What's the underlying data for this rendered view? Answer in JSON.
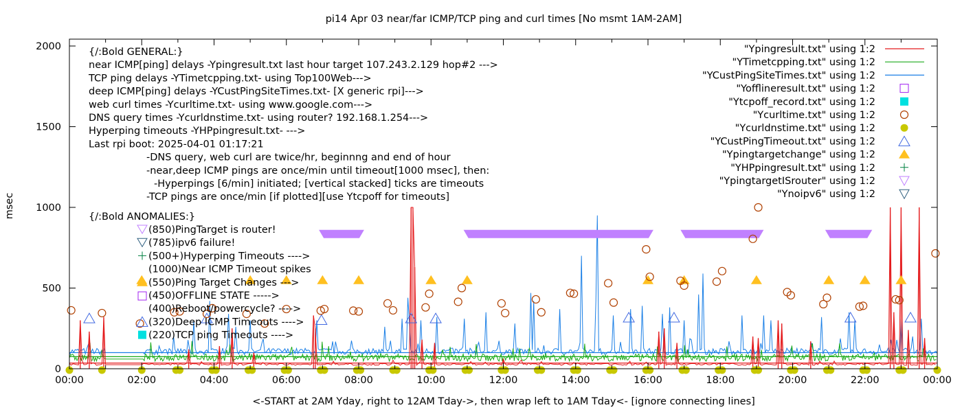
{
  "chart_data": {
    "type": "line",
    "title": "pi14 Apr 03  near/far ICMP/TCP ping and curl times [No msmt 1AM-2AM]",
    "xlabel": "<-START at 2AM Yday, right to 12AM Tday->, then wrap left to 1AM Tday<- [ignore connecting lines]",
    "ylabel": "msec",
    "xlim": [
      0,
      24
    ],
    "ylim": [
      0,
      2000
    ],
    "x_unit": "hours",
    "x_ticks": [
      {
        "value": 0,
        "label": "00:00"
      },
      {
        "value": 2,
        "label": "02:00"
      },
      {
        "value": 4,
        "label": "04:00"
      },
      {
        "value": 6,
        "label": "06:00"
      },
      {
        "value": 8,
        "label": "08:00"
      },
      {
        "value": 10,
        "label": "10:00"
      },
      {
        "value": 12,
        "label": "12:00"
      },
      {
        "value": 14,
        "label": "14:00"
      },
      {
        "value": 16,
        "label": "16:00"
      },
      {
        "value": 18,
        "label": "18:00"
      },
      {
        "value": 20,
        "label": "20:00"
      },
      {
        "value": 22,
        "label": "22:00"
      },
      {
        "value": 24,
        "label": "00:00"
      }
    ],
    "y_ticks": [
      {
        "value": 0,
        "label": "0"
      },
      {
        "value": 500,
        "label": "500"
      },
      {
        "value": 1000,
        "label": "1000"
      },
      {
        "value": 1500,
        "label": "1500"
      },
      {
        "value": 2000,
        "label": "2000"
      }
    ],
    "legend_position": "top-right",
    "annotations": {
      "general": [
        "{/:Bold GENERAL:}",
        "near ICMP[ping] delays -Ypingresult.txt last hour target 107.243.2.129 hop#2 --->",
        "TCP ping delays -YTimetcpping.txt- using Top100Web--->",
        "deep ICMP[ping] delays -YCustPingSiteTimes.txt- [X generic rpi]--->",
        "web curl times -Ycurltime.txt- using www.google.com--->",
        "DNS query times -Ycurldnstime.txt- using router? 192.168.1.254--->",
        "Hyperping timeouts -YHPpingresult.txt- --->",
        "Last rpi boot: 2025-04-01 01:17:21"
      ],
      "notes": [
        "-DNS query, web curl are twice/hr, beginnng and end of hour",
        "-near,deep ICMP pings are once/min until timeout[1000 msec], then:",
        "  -Hyperpings [6/min] initiated; [vertical stacked] ticks are timeouts",
        "-TCP pings are once/min [if plotted][use Ytcpoff for timeouts]"
      ],
      "anomalies_title": "{/:Bold ANOMALIES:}",
      "anomalies": [
        {
          "symbol": "tri-down-open-purple",
          "text": "(850)PingTarget is router!"
        },
        {
          "symbol": "tri-down-open-navy",
          "text": "(785)ipv6 failure!"
        },
        {
          "symbol": "plus-green",
          "text": "(500+)Hyperping Timeouts ---->"
        },
        {
          "symbol": "none",
          "text": "(1000)Near ICMP Timeout spikes"
        },
        {
          "symbol": "tri-up-filled-orange",
          "text": "(550)Ping Target Changes --->"
        },
        {
          "symbol": "square-open-purple",
          "text": "(450)OFFLINE STATE ----->"
        },
        {
          "symbol": "none",
          "text": "(400)Reboot/powercycle? ---->"
        },
        {
          "symbol": "tri-up-open-blue",
          "text": "(320)Deep ICMP Timeouts ---->"
        },
        {
          "symbol": "square-filled-cyan",
          "text": "(220)TCP ping Timeouts ---->"
        }
      ]
    },
    "legend": [
      {
        "label": "\"Ypingresult.txt\" using 1:2",
        "style": "line",
        "color": "#e41a1c"
      },
      {
        "label": "\"YTimetcpping.txt\" using 1:2",
        "style": "line",
        "color": "#1aaa1a"
      },
      {
        "label": "\"YCustPingSiteTimes.txt\" using 1:2",
        "style": "line",
        "color": "#1a7fe6"
      },
      {
        "label": "\"Yofflineresult.txt\" using 1:2",
        "style": "square-open",
        "color": "#a020f0"
      },
      {
        "label": "\"Ytcpoff_record.txt\" using 1:2",
        "style": "square-filled",
        "color": "#00e0e0"
      },
      {
        "label": "\"Ycurltime.txt\" using 1:2",
        "style": "circle-open",
        "color": "#b04000"
      },
      {
        "label": "\"Ycurldnstime.txt\" using 1:2",
        "style": "circle-filled",
        "color": "#c8c800"
      },
      {
        "label": "\"YCustPingTimeout.txt\" using 1:2",
        "style": "tri-up-open",
        "color": "#4169e1"
      },
      {
        "label": "\"Ypingtargetchange\" using 1:2",
        "style": "tri-up-filled",
        "color": "#ffc020"
      },
      {
        "label": "\"YHPpingresult.txt\" using 1:2",
        "style": "plus",
        "color": "#008040"
      },
      {
        "label": "\"YpingtargetISrouter\" using 1:2",
        "style": "tri-down-open",
        "color": "#c080ff"
      },
      {
        "label": "\"Ynoipv6\" using 1:2",
        "style": "tri-down-open",
        "color": "#306080"
      }
    ],
    "series": {
      "near_icmp": {
        "name": "Ypingresult.txt",
        "color": "#e41a1c",
        "baseline": 35,
        "spikes": [
          [
            0.3,
            300
          ],
          [
            0.55,
            230
          ],
          [
            0.95,
            320
          ],
          [
            3.3,
            120
          ],
          [
            4.15,
            140
          ],
          [
            4.5,
            250
          ],
          [
            5.1,
            100
          ],
          [
            6.75,
            330
          ],
          [
            6.8,
            250
          ],
          [
            9.45,
            1000
          ],
          [
            9.5,
            1000
          ],
          [
            9.55,
            630
          ],
          [
            9.75,
            180
          ],
          [
            10.1,
            160
          ],
          [
            12.0,
            60
          ],
          [
            16.3,
            230
          ],
          [
            16.45,
            250
          ],
          [
            16.8,
            160
          ],
          [
            18.9,
            200
          ],
          [
            19.05,
            190
          ],
          [
            19.6,
            300
          ],
          [
            19.7,
            280
          ],
          [
            20.5,
            170
          ],
          [
            22.7,
            1000
          ],
          [
            22.8,
            350
          ],
          [
            23.0,
            1000
          ],
          [
            23.2,
            240
          ],
          [
            23.5,
            1000
          ],
          [
            23.65,
            190
          ]
        ]
      },
      "tcp_ping": {
        "name": "YTimetcpping.txt",
        "color": "#1aaa1a",
        "baseline": 75,
        "noise": 45
      },
      "deep_icmp": {
        "name": "YCustPingSiteTimes.txt",
        "color": "#1a7fe6",
        "baseline": 100,
        "noise": 40,
        "spikes": [
          [
            0.5,
            150
          ],
          [
            3.45,
            300
          ],
          [
            3.9,
            420
          ],
          [
            4.4,
            340
          ],
          [
            4.6,
            260
          ],
          [
            5.0,
            300
          ],
          [
            6.85,
            300
          ],
          [
            8.7,
            260
          ],
          [
            9.2,
            310
          ],
          [
            9.35,
            440
          ],
          [
            9.4,
            290
          ],
          [
            9.7,
            300
          ],
          [
            10.15,
            320
          ],
          [
            10.9,
            310
          ],
          [
            11.5,
            350
          ],
          [
            12.3,
            280
          ],
          [
            12.75,
            470
          ],
          [
            12.85,
            420
          ],
          [
            13.55,
            370
          ],
          [
            14.15,
            700
          ],
          [
            14.55,
            420
          ],
          [
            14.6,
            950
          ],
          [
            15.05,
            330
          ],
          [
            15.5,
            370
          ],
          [
            15.85,
            390
          ],
          [
            16.4,
            340
          ],
          [
            16.6,
            380
          ],
          [
            17.0,
            300
          ],
          [
            17.4,
            460
          ],
          [
            17.5,
            590
          ],
          [
            18.6,
            330
          ],
          [
            19.2,
            330
          ],
          [
            19.4,
            300
          ],
          [
            20.8,
            320
          ],
          [
            21.55,
            350
          ],
          [
            21.7,
            300
          ],
          [
            22.4,
            150
          ],
          [
            22.7,
            180
          ],
          [
            23.0,
            310
          ],
          [
            23.3,
            200
          ],
          [
            23.55,
            310
          ]
        ]
      },
      "curl_time": {
        "name": "Ycurltime.txt",
        "color": "#b04000",
        "points": [
          [
            0.05,
            362
          ],
          [
            0.9,
            345
          ],
          [
            1.95,
            280
          ],
          [
            2.9,
            350
          ],
          [
            3.05,
            355
          ],
          [
            3.8,
            340
          ],
          [
            3.95,
            375
          ],
          [
            4.9,
            340
          ],
          [
            5.4,
            280
          ],
          [
            6.0,
            370
          ],
          [
            6.95,
            360
          ],
          [
            7.05,
            370
          ],
          [
            7.85,
            360
          ],
          [
            8.0,
            355
          ],
          [
            8.8,
            405
          ],
          [
            8.95,
            362
          ],
          [
            9.85,
            380
          ],
          [
            9.95,
            465
          ],
          [
            10.75,
            415
          ],
          [
            10.85,
            500
          ],
          [
            11.95,
            405
          ],
          [
            12.05,
            345
          ],
          [
            12.9,
            430
          ],
          [
            13.05,
            350
          ],
          [
            13.85,
            470
          ],
          [
            13.95,
            465
          ],
          [
            14.9,
            530
          ],
          [
            15.05,
            410
          ],
          [
            15.95,
            740
          ],
          [
            16.05,
            570
          ],
          [
            16.9,
            545
          ],
          [
            17.0,
            515
          ],
          [
            17.9,
            540
          ],
          [
            18.05,
            605
          ],
          [
            18.9,
            805
          ],
          [
            19.05,
            1000
          ],
          [
            19.85,
            475
          ],
          [
            19.95,
            455
          ],
          [
            20.85,
            400
          ],
          [
            20.95,
            440
          ],
          [
            21.85,
            385
          ],
          [
            21.95,
            390
          ],
          [
            22.85,
            430
          ],
          [
            22.95,
            425
          ],
          [
            23.95,
            715
          ]
        ]
      },
      "dns_time": {
        "name": "Ycurldnstime.txt",
        "color": "#c8c800",
        "points": [
          [
            0,
            0
          ],
          [
            0.9,
            0
          ],
          [
            2.0,
            0
          ],
          [
            2.95,
            0
          ],
          [
            3.05,
            0
          ],
          [
            3.95,
            0
          ],
          [
            4.05,
            0
          ],
          [
            4.95,
            0
          ],
          [
            5.05,
            0
          ],
          [
            5.95,
            0
          ],
          [
            6.05,
            0
          ],
          [
            6.95,
            0
          ],
          [
            7.05,
            0
          ],
          [
            7.95,
            0
          ],
          [
            8.05,
            0
          ],
          [
            8.95,
            0
          ],
          [
            9.05,
            0
          ],
          [
            9.95,
            0
          ],
          [
            10.05,
            0
          ],
          [
            10.95,
            0
          ],
          [
            11.05,
            0
          ],
          [
            11.95,
            0
          ],
          [
            12.05,
            0
          ],
          [
            12.95,
            0
          ],
          [
            13.05,
            0
          ],
          [
            13.95,
            0
          ],
          [
            14.05,
            0
          ],
          [
            14.95,
            0
          ],
          [
            15.05,
            0
          ],
          [
            15.95,
            0
          ],
          [
            16.05,
            0
          ],
          [
            16.95,
            0
          ],
          [
            17.05,
            0
          ],
          [
            17.95,
            0
          ],
          [
            18.05,
            0
          ],
          [
            18.95,
            0
          ],
          [
            19.05,
            0
          ],
          [
            19.95,
            0
          ],
          [
            20.05,
            0
          ],
          [
            20.95,
            0
          ],
          [
            21.05,
            0
          ],
          [
            21.95,
            0
          ],
          [
            22.05,
            0
          ],
          [
            22.95,
            0
          ],
          [
            23.05,
            0
          ],
          [
            24.0,
            0
          ]
        ]
      },
      "deep_icmp_timeouts": {
        "name": "YCustPingTimeout.txt",
        "color": "#4169e1",
        "points": [
          [
            0.55,
            310
          ],
          [
            3.8,
            310
          ],
          [
            6.97,
            300
          ],
          [
            9.45,
            310
          ],
          [
            10.13,
            310
          ],
          [
            15.47,
            315
          ],
          [
            16.72,
            315
          ],
          [
            21.6,
            315
          ],
          [
            23.26,
            315
          ]
        ]
      },
      "ping_target_change": {
        "name": "Ypingtargetchange",
        "color": "#ffc020",
        "points": [
          [
            2,
            550
          ],
          [
            5,
            550
          ],
          [
            6,
            550
          ],
          [
            7,
            550
          ],
          [
            8,
            550
          ],
          [
            10,
            550
          ],
          [
            11,
            550
          ],
          [
            16,
            550
          ],
          [
            17,
            550
          ],
          [
            19,
            550
          ],
          [
            21,
            550
          ],
          [
            22,
            550
          ],
          [
            23,
            550
          ]
        ]
      },
      "ping_target_is_router": {
        "name": "YpingtargetISrouter",
        "color": "#c080ff",
        "ranges": [
          [
            6.9,
            8.15
          ],
          [
            10.9,
            16.15
          ],
          [
            16.9,
            19.2
          ],
          [
            20.9,
            22.2
          ]
        ],
        "value": 835
      }
    }
  }
}
